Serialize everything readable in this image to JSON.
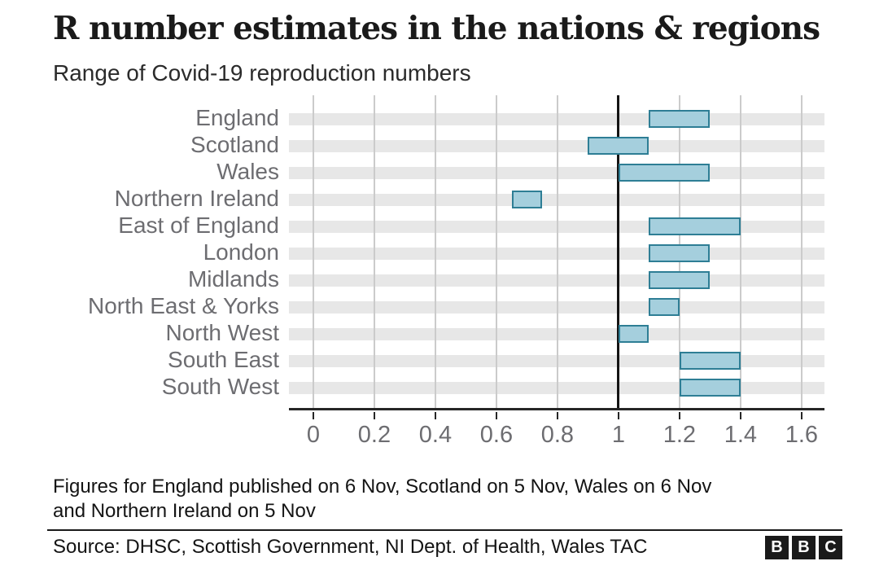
{
  "header": {
    "title": "R number estimates in the nations & regions",
    "subtitle": "Range of Covid-19 reproduction numbers"
  },
  "chart_data": {
    "type": "range-bar",
    "orientation": "horizontal",
    "title": "R number estimates in the nations & regions",
    "subtitle": "Range of Covid-19 reproduction numbers",
    "categories": [
      "England",
      "Scotland",
      "Wales",
      "Northern Ireland",
      "East of England",
      "London",
      "Midlands",
      "North East & Yorks",
      "North West",
      "South East",
      "South West"
    ],
    "ranges": [
      {
        "region": "England",
        "low": 1.1,
        "high": 1.3
      },
      {
        "region": "Scotland",
        "low": 0.9,
        "high": 1.1
      },
      {
        "region": "Wales",
        "low": 1.0,
        "high": 1.3
      },
      {
        "region": "Northern Ireland",
        "low": 0.65,
        "high": 0.75
      },
      {
        "region": "East of England",
        "low": 1.1,
        "high": 1.4
      },
      {
        "region": "London",
        "low": 1.1,
        "high": 1.3
      },
      {
        "region": "Midlands",
        "low": 1.1,
        "high": 1.3
      },
      {
        "region": "North East & Yorks",
        "low": 1.1,
        "high": 1.2
      },
      {
        "region": "North West",
        "low": 1.0,
        "high": 1.1
      },
      {
        "region": "South East",
        "low": 1.2,
        "high": 1.4
      },
      {
        "region": "South West",
        "low": 1.2,
        "high": 1.4
      }
    ],
    "x_ticks": [
      {
        "value": 0,
        "label": "0"
      },
      {
        "value": 0.2,
        "label": "0.2"
      },
      {
        "value": 0.4,
        "label": "0.4"
      },
      {
        "value": 0.6,
        "label": "0.6"
      },
      {
        "value": 0.8,
        "label": "0.8"
      },
      {
        "value": 1,
        "label": "1"
      },
      {
        "value": 1.2,
        "label": "1.2"
      },
      {
        "value": 1.4,
        "label": "1.4"
      },
      {
        "value": 1.6,
        "label": "1.6"
      }
    ],
    "xlim": [
      -0.08,
      1.675
    ],
    "reference_line_x": 1,
    "grid": "vertical-gridlines-with-row-stripes",
    "legend": "none"
  },
  "footnote": {
    "lines": [
      "Figures for England published on 6 Nov, Scotland on 5 Nov, Wales on 6 Nov",
      "and Northern Ireland on 5 Nov"
    ]
  },
  "footer": {
    "source": "Source: DHSC, Scottish Government, NI Dept. of Health, Wales TAC",
    "logo_letters": [
      "B",
      "B",
      "C"
    ]
  },
  "colors": {
    "bar_fill": "#a5cfdd",
    "bar_border": "#2e7e95",
    "row_stripe": "#e7e7e7",
    "gridline": "#cbcbcb",
    "axis": "#262626",
    "reference_line": "#141414",
    "label_gray": "#6d6d71",
    "text_dark": "#141414"
  }
}
